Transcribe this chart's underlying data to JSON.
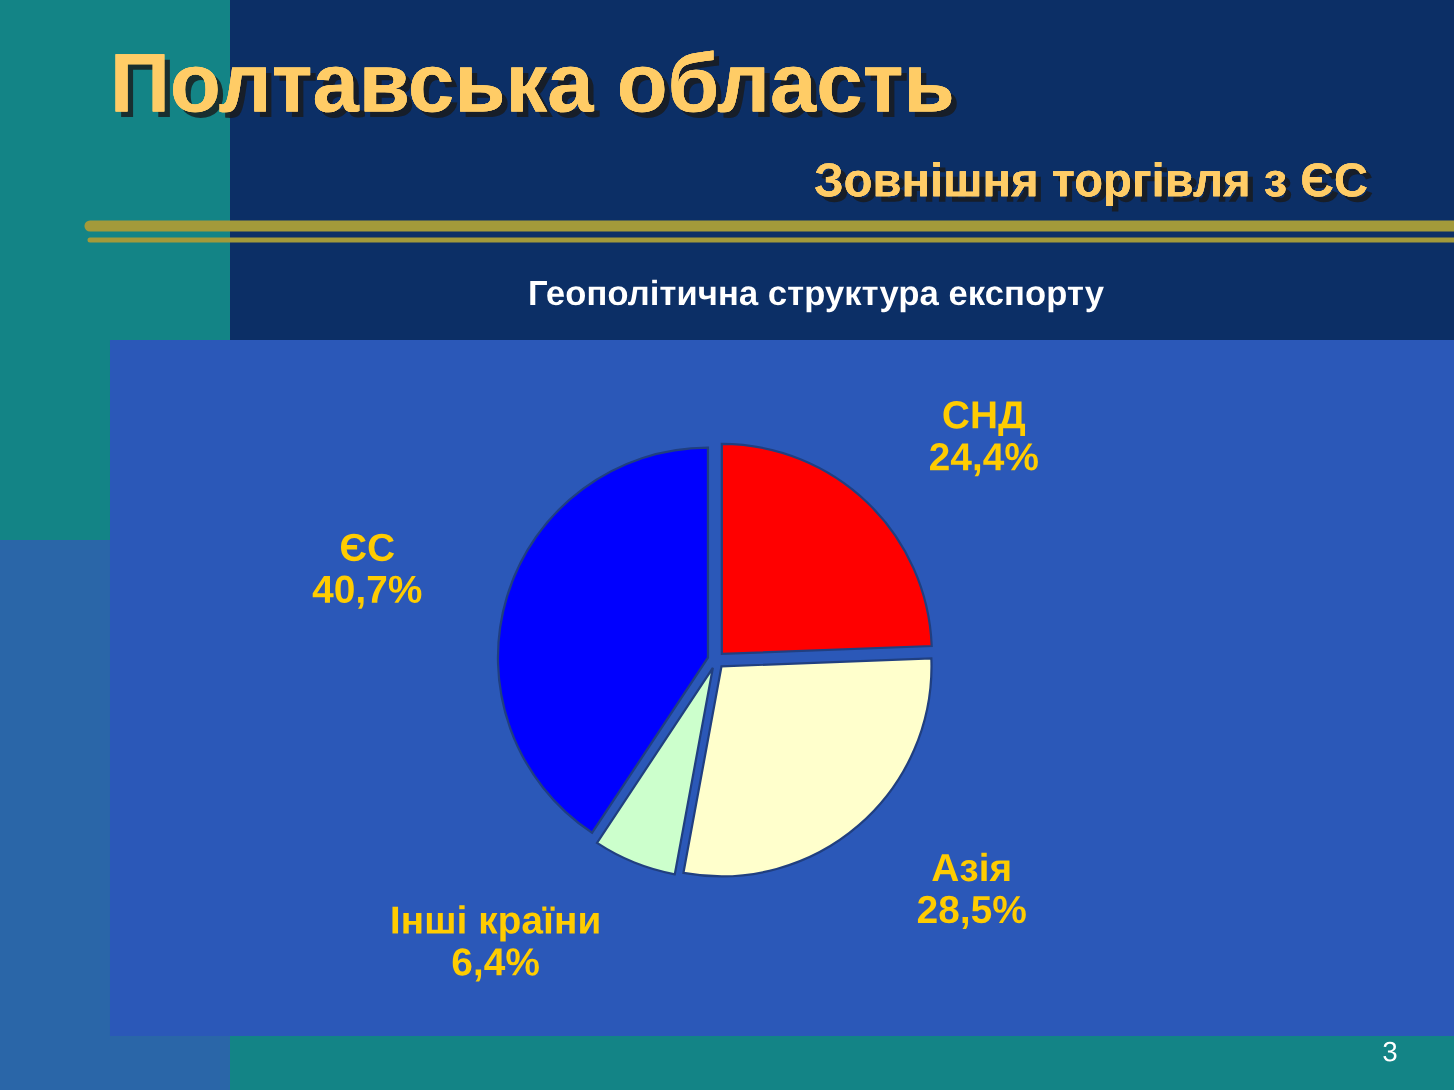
{
  "chart_data": {
    "type": "pie",
    "title": "Полтавська область",
    "subtitle": "Зовнішня торгівля з ЄС",
    "annotations": [
      "Геополітична структура експорту",
      "3"
    ],
    "categories": [
      "СНД",
      "Азія",
      "Інші країни",
      "ЄС"
    ],
    "values": [
      24.4,
      28.5,
      6.4,
      40.7
    ],
    "colors": [
      "#ff0000",
      "#ffffcc",
      "#ccffcc",
      "#0000ff"
    ],
    "value_labels": [
      "24,4%",
      "28,5%",
      "6,4%",
      "40,7%"
    ]
  }
}
